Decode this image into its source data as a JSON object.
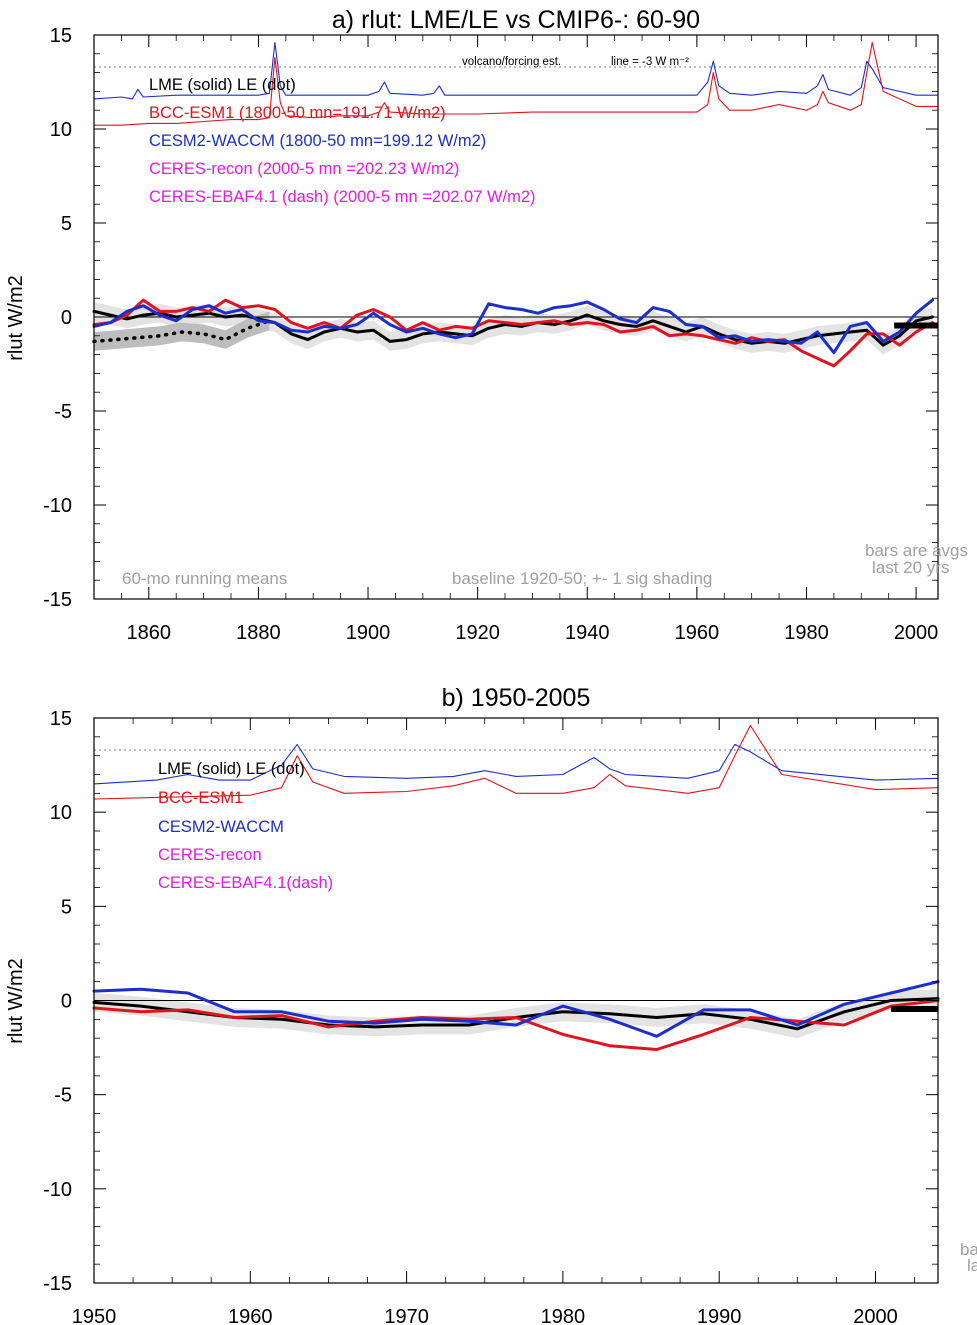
{
  "chart_data": [
    {
      "type": "line",
      "title": "a) rlut: LME/LE vs CMIP6-: 60-90",
      "ylabel": "rlut W/m2",
      "xlabel": "",
      "xlim": [
        1850,
        2004
      ],
      "ylim": [
        -15,
        15
      ],
      "xticks": [
        1860,
        1880,
        1900,
        1920,
        1940,
        1960,
        1980,
        2000
      ],
      "yticks": [
        15,
        10,
        5,
        0,
        -5,
        -10,
        -15
      ],
      "ytick_labels": [
        "15",
        "10",
        "5",
        "0",
        "-5",
        "-10",
        "-15"
      ],
      "grid": false,
      "legend_placement": "top-left",
      "legend": [
        {
          "label": "LME (solid)   LE (dot)",
          "color": "#000000"
        },
        {
          "label": "BCC-ESM1 (1800-50 mn=191.71 W/m2)",
          "color": "#e0141e"
        },
        {
          "label": "CESM2-WACCM (1800-50 mn=199.12 W/m2)",
          "color": "#1c2ecb"
        },
        {
          "label": "CERES-recon (2000-5 mn =202.23 W/m2)",
          "color": "#e619e6"
        },
        {
          "label": "CERES-EBAF4.1 (dash) (2000-5 mn =202.07 W/m2)",
          "color": "#e619e6"
        }
      ],
      "annotations": {
        "volcano_label": "volcano/forcing est.",
        "line_label": "line = -3 W m⁻²",
        "running_mean": "60-mo running means",
        "baseline": "baseline 1920-50; +- 1 sig shading",
        "bars_line1": "bars are avgs",
        "bars_line2": "last 20 yrs"
      },
      "reference_lines": {
        "zero": 0,
        "volcano_reference": 13.3
      },
      "bars_last20yrs": {
        "x": [
          1996,
          2004
        ],
        "y": -0.45
      },
      "series": [
        {
          "name": "LME (solid)",
          "style": "thick",
          "color": "#000000",
          "x": [
            1850,
            1853,
            1856,
            1859,
            1862,
            1865,
            1868,
            1871,
            1874,
            1877,
            1880,
            1883,
            1886,
            1889,
            1892,
            1895,
            1898,
            1901,
            1904,
            1907,
            1910,
            1913,
            1916,
            1919,
            1922,
            1925,
            1928,
            1931,
            1934,
            1937,
            1940,
            1943,
            1946,
            1949,
            1952,
            1955,
            1958,
            1961,
            1964,
            1967,
            1970,
            1973,
            1976,
            1979,
            1982,
            1985,
            1988,
            1991,
            1994,
            1997,
            2000,
            2003
          ],
          "y": [
            0.3,
            0.1,
            -0.1,
            0.1,
            0.2,
            0.0,
            0.1,
            0.2,
            0.0,
            0.1,
            -0.1,
            -0.3,
            -0.9,
            -1.2,
            -0.8,
            -0.6,
            -0.8,
            -0.7,
            -1.3,
            -1.2,
            -0.9,
            -0.8,
            -0.9,
            -1.0,
            -0.6,
            -0.4,
            -0.5,
            -0.3,
            -0.4,
            -0.2,
            0.1,
            -0.2,
            -0.4,
            -0.5,
            -0.2,
            -0.5,
            -0.8,
            -0.5,
            -0.9,
            -1.2,
            -1.4,
            -1.3,
            -1.4,
            -1.2,
            -1.0,
            -0.9,
            -0.8,
            -0.7,
            -1.5,
            -1.0,
            -0.2,
            0.0
          ]
        },
        {
          "name": "LE (dot)",
          "style": "dotted",
          "color": "#000000",
          "x": [
            1850,
            1854,
            1858,
            1862,
            1866,
            1870,
            1874,
            1878,
            1882
          ],
          "y": [
            -1.3,
            -1.2,
            -1.1,
            -1.0,
            -0.8,
            -0.9,
            -1.2,
            -0.6,
            -0.2
          ]
        },
        {
          "name": "BCC-ESM1",
          "style": "thick",
          "color": "#e0141e",
          "x": [
            1850,
            1853,
            1856,
            1859,
            1862,
            1865,
            1868,
            1871,
            1874,
            1877,
            1880,
            1883,
            1886,
            1889,
            1892,
            1895,
            1898,
            1901,
            1904,
            1907,
            1910,
            1913,
            1916,
            1919,
            1922,
            1925,
            1928,
            1931,
            1934,
            1937,
            1940,
            1943,
            1946,
            1949,
            1952,
            1955,
            1958,
            1961,
            1964,
            1967,
            1970,
            1973,
            1976,
            1979,
            1982,
            1985,
            1988,
            1991,
            1994,
            1997,
            2000,
            2003
          ],
          "y": [
            -0.4,
            -0.3,
            0.1,
            0.9,
            0.3,
            0.3,
            0.5,
            0.3,
            0.9,
            0.5,
            0.6,
            0.4,
            -0.3,
            -0.6,
            -0.3,
            -0.6,
            0.1,
            0.4,
            0.0,
            -0.7,
            -0.3,
            -0.7,
            -0.5,
            -0.6,
            -0.2,
            -0.3,
            -0.4,
            -0.3,
            -0.2,
            -0.4,
            -0.3,
            -0.4,
            -0.8,
            -0.7,
            -0.5,
            -1.0,
            -0.9,
            -1.0,
            -1.2,
            -1.4,
            -1.1,
            -1.3,
            -1.2,
            -1.8,
            -2.2,
            -2.6,
            -1.8,
            -0.9,
            -0.9,
            -1.5,
            -0.8,
            -0.3
          ]
        },
        {
          "name": "CESM2-WACCM",
          "style": "thick",
          "color": "#1c2ecb",
          "x": [
            1850,
            1853,
            1856,
            1859,
            1862,
            1865,
            1868,
            1871,
            1874,
            1877,
            1880,
            1883,
            1886,
            1889,
            1892,
            1895,
            1898,
            1901,
            1904,
            1907,
            1910,
            1913,
            1916,
            1919,
            1922,
            1925,
            1928,
            1931,
            1934,
            1937,
            1940,
            1943,
            1946,
            1949,
            1952,
            1955,
            1958,
            1961,
            1964,
            1967,
            1970,
            1973,
            1976,
            1979,
            1982,
            1985,
            1988,
            1991,
            1994,
            1997,
            2000,
            2003
          ],
          "y": [
            -0.5,
            -0.3,
            0.3,
            0.6,
            0.1,
            -0.2,
            0.4,
            0.6,
            0.2,
            0.4,
            -0.2,
            -0.3,
            -0.7,
            -0.8,
            -0.5,
            -0.6,
            -0.4,
            0.2,
            -0.4,
            -0.8,
            -0.6,
            -0.9,
            -1.1,
            -0.9,
            0.7,
            0.5,
            0.4,
            0.2,
            0.5,
            0.6,
            0.8,
            0.4,
            -0.1,
            -0.3,
            0.5,
            0.3,
            -0.4,
            -0.5,
            -1.1,
            -1.0,
            -1.3,
            -1.2,
            -1.3,
            -1.4,
            -0.8,
            -1.9,
            -0.5,
            -0.3,
            -1.3,
            -0.8,
            0.2,
            0.9
          ]
        },
        {
          "name": "BCC-ESM1 volcano/forcing",
          "style": "thin",
          "color": "#e0141e",
          "x": [
            1850,
            1855,
            1860,
            1865,
            1870,
            1875,
            1880,
            1882,
            1883,
            1884,
            1885,
            1890,
            1895,
            1900,
            1902,
            1903,
            1904,
            1910,
            1920,
            1930,
            1940,
            1950,
            1960,
            1962,
            1963,
            1964,
            1966,
            1970,
            1975,
            1980,
            1982,
            1983,
            1984,
            1988,
            1990,
            1991,
            1992,
            1994,
            2000,
            2004
          ],
          "y": [
            10.2,
            10.2,
            10.3,
            10.3,
            10.4,
            10.5,
            10.5,
            10.6,
            13.8,
            11.4,
            10.7,
            10.6,
            10.7,
            10.7,
            10.9,
            11.4,
            10.9,
            10.8,
            10.8,
            10.9,
            10.9,
            10.9,
            10.9,
            11.3,
            13.0,
            11.6,
            11.0,
            11.0,
            11.3,
            11.0,
            11.3,
            12.0,
            11.4,
            11.0,
            11.3,
            13.0,
            14.6,
            12.0,
            11.2,
            11.2
          ]
        },
        {
          "name": "CESM2-WACCM volcano/forcing",
          "style": "thin",
          "color": "#1c2ecb",
          "x": [
            1850,
            1855,
            1857,
            1858,
            1859,
            1865,
            1870,
            1875,
            1880,
            1882,
            1883,
            1884,
            1885,
            1890,
            1895,
            1900,
            1902,
            1903,
            1904,
            1910,
            1912,
            1913,
            1914,
            1920,
            1930,
            1940,
            1950,
            1960,
            1962,
            1963,
            1964,
            1966,
            1970,
            1975,
            1980,
            1982,
            1983,
            1984,
            1988,
            1990,
            1991,
            1992,
            1994,
            2000,
            2004
          ],
          "y": [
            11.6,
            11.7,
            11.6,
            12.1,
            11.7,
            11.8,
            11.8,
            11.8,
            11.8,
            11.9,
            14.6,
            12.3,
            11.8,
            11.8,
            11.8,
            11.8,
            12.0,
            12.5,
            11.9,
            11.8,
            11.9,
            12.3,
            11.8,
            11.8,
            11.8,
            11.8,
            11.8,
            11.8,
            12.5,
            13.6,
            12.3,
            11.9,
            11.8,
            12.0,
            11.9,
            12.3,
            12.9,
            12.1,
            11.8,
            12.2,
            13.6,
            13.2,
            12.2,
            11.8,
            11.8
          ]
        }
      ]
    },
    {
      "type": "line",
      "title": "b) 1950-2005",
      "ylabel": "rlut W/m2",
      "xlabel": "",
      "xlim": [
        1950,
        2004
      ],
      "ylim": [
        -15,
        15
      ],
      "xticks": [
        1950,
        1960,
        1970,
        1980,
        1990,
        2000
      ],
      "yticks": [
        15,
        10,
        5,
        0,
        -5,
        -10,
        -15
      ],
      "ytick_labels": [
        "15",
        "10",
        "5",
        "0",
        "-5",
        "-10",
        "-15"
      ],
      "grid": false,
      "legend_placement": "top-left",
      "legend": [
        {
          "label": "LME (solid)      LE (dot)",
          "color": "#000000"
        },
        {
          "label": "BCC-ESM1",
          "color": "#e0141e"
        },
        {
          "label": "CESM2-WACCM",
          "color": "#1c2ecb"
        },
        {
          "label": "CERES-recon",
          "color": "#e619e6"
        },
        {
          "label": "CERES-EBAF4.1(dash)",
          "color": "#e619e6"
        }
      ],
      "annotations": {
        "bars_clip1": "ba",
        "bars_clip2": "la"
      },
      "reference_lines": {
        "zero": 0,
        "volcano_reference": 13.3
      },
      "bars_last20yrs": {
        "x": [
          2001,
          2004
        ],
        "y": -0.45
      },
      "series": [
        {
          "name": "LME (solid)",
          "style": "thick",
          "color": "#000000",
          "x": [
            1950,
            1953,
            1956,
            1959,
            1962,
            1965,
            1968,
            1971,
            1974,
            1977,
            1980,
            1983,
            1986,
            1989,
            1992,
            1995,
            1998,
            2001,
            2004
          ],
          "y": [
            -0.1,
            -0.3,
            -0.6,
            -0.9,
            -1.0,
            -1.3,
            -1.4,
            -1.3,
            -1.3,
            -0.9,
            -0.6,
            -0.7,
            -0.9,
            -0.7,
            -1.0,
            -1.5,
            -0.6,
            0.0,
            0.1
          ]
        },
        {
          "name": "BCC-ESM1",
          "style": "thick",
          "color": "#e0141e",
          "x": [
            1950,
            1953,
            1956,
            1959,
            1962,
            1965,
            1968,
            1971,
            1974,
            1977,
            1980,
            1983,
            1986,
            1989,
            1992,
            1995,
            1998,
            2001,
            2004
          ],
          "y": [
            -0.4,
            -0.6,
            -0.5,
            -0.9,
            -0.8,
            -1.4,
            -1.1,
            -0.9,
            -1.0,
            -0.9,
            -1.8,
            -2.4,
            -2.6,
            -1.8,
            -0.9,
            -1.1,
            -1.3,
            -0.3,
            0.0
          ]
        },
        {
          "name": "CESM2-WACCM",
          "style": "thick",
          "color": "#1c2ecb",
          "x": [
            1950,
            1953,
            1956,
            1959,
            1962,
            1965,
            1968,
            1971,
            1974,
            1977,
            1980,
            1983,
            1986,
            1989,
            1992,
            1995,
            1998,
            2001,
            2004
          ],
          "y": [
            0.5,
            0.6,
            0.4,
            -0.6,
            -0.6,
            -1.1,
            -1.2,
            -1.0,
            -1.1,
            -1.3,
            -0.3,
            -1.0,
            -1.9,
            -0.5,
            -0.5,
            -1.3,
            -0.2,
            0.4,
            1.0
          ]
        },
        {
          "name": "BCC-ESM1 volcano/forcing",
          "style": "thin",
          "color": "#e0141e",
          "x": [
            1950,
            1955,
            1960,
            1962,
            1963,
            1964,
            1966,
            1970,
            1973,
            1975,
            1977,
            1980,
            1982,
            1983,
            1984,
            1988,
            1990,
            1991,
            1992,
            1994,
            2000,
            2004
          ],
          "y": [
            10.7,
            10.8,
            10.9,
            11.3,
            13.0,
            11.6,
            11.0,
            11.1,
            11.4,
            11.8,
            11.0,
            11.0,
            11.3,
            12.0,
            11.4,
            11.0,
            11.3,
            13.0,
            14.6,
            12.0,
            11.2,
            11.3
          ]
        },
        {
          "name": "CESM2-WACCM volcano/forcing",
          "style": "thin",
          "color": "#1c2ecb",
          "x": [
            1950,
            1954,
            1956,
            1958,
            1960,
            1962,
            1963,
            1964,
            1966,
            1970,
            1973,
            1975,
            1977,
            1980,
            1982,
            1983,
            1984,
            1988,
            1990,
            1991,
            1992,
            1994,
            2000,
            2004
          ],
          "y": [
            11.5,
            11.7,
            12.0,
            11.7,
            11.7,
            12.5,
            13.6,
            12.3,
            11.9,
            11.8,
            11.9,
            12.2,
            11.9,
            12.0,
            12.9,
            12.3,
            12.0,
            11.8,
            12.2,
            13.6,
            13.2,
            12.2,
            11.7,
            11.8
          ]
        }
      ]
    }
  ],
  "colors": {
    "axis": "#000000",
    "shade": "#d9d9d9",
    "reference": "#808080",
    "note": "#a0a0a0"
  }
}
